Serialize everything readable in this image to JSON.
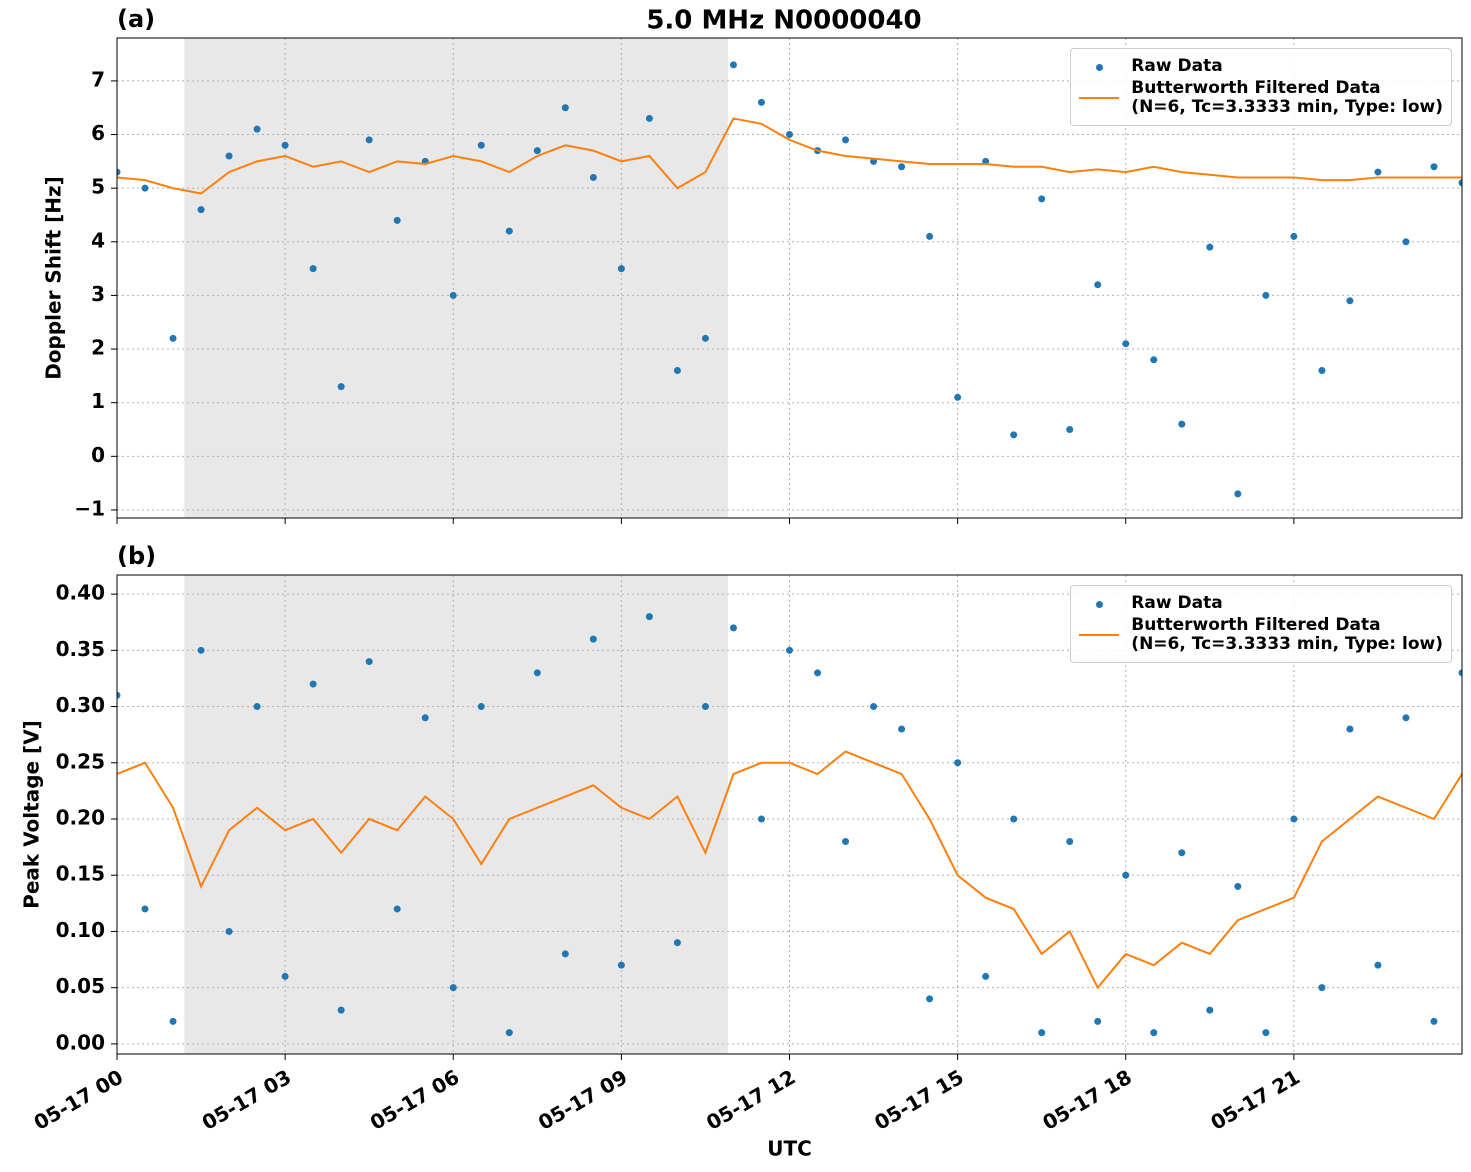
{
  "title": "5.0 MHz N0000040",
  "chart_data": [
    {
      "type": "scatter",
      "panel_label": "(a)",
      "ylabel": "Doppler Shift [Hz]",
      "xlim": [
        0,
        24
      ],
      "ylim": [
        -1.15,
        7.8
      ],
      "grid": true,
      "legend": "upper right",
      "shaded_xrange": [
        1.2,
        10.9
      ],
      "yticks": [
        {
          "value": -1,
          "label": "−1"
        },
        0,
        1,
        2,
        3,
        4,
        5,
        6,
        7
      ],
      "x": [
        0,
        0.5,
        1,
        1.5,
        2,
        2.5,
        3,
        3.5,
        4,
        4.5,
        5,
        5.5,
        6,
        6.5,
        7,
        7.5,
        8,
        8.5,
        9,
        9.5,
        10,
        10.5,
        11,
        11.5,
        12,
        12.5,
        13,
        13.5,
        14,
        14.5,
        15,
        15.5,
        16,
        16.5,
        17,
        17.5,
        18,
        18.5,
        19,
        19.5,
        20,
        20.5,
        21,
        21.5,
        22,
        22.5,
        23,
        23.5,
        24
      ],
      "series": [
        {
          "name": "Raw Data",
          "mode": "markers",
          "color": "#1f77b4",
          "values": [
            5.3,
            5.0,
            2.2,
            4.6,
            5.6,
            6.1,
            5.8,
            3.5,
            1.3,
            5.9,
            4.4,
            5.5,
            3.0,
            5.8,
            4.2,
            5.7,
            6.5,
            5.2,
            3.5,
            6.3,
            1.6,
            2.2,
            7.3,
            6.6,
            6.0,
            5.7,
            5.9,
            5.5,
            5.4,
            4.1,
            1.1,
            5.5,
            0.4,
            4.8,
            0.5,
            3.2,
            2.1,
            1.8,
            0.6,
            3.9,
            -0.7,
            3.0,
            4.1,
            1.6,
            2.9,
            5.3,
            4.0,
            5.4,
            5.1
          ]
        },
        {
          "name": "Butterworth Filtered Data\n(N=6, Tc=3.3333 min, Type: low)",
          "mode": "line",
          "color": "#ff7f0e",
          "values": [
            5.2,
            5.15,
            5.0,
            4.9,
            5.3,
            5.5,
            5.6,
            5.4,
            5.5,
            5.3,
            5.5,
            5.45,
            5.6,
            5.5,
            5.3,
            5.6,
            5.8,
            5.7,
            5.5,
            5.6,
            5.0,
            5.3,
            6.3,
            6.2,
            5.9,
            5.7,
            5.6,
            5.55,
            5.5,
            5.45,
            5.45,
            5.45,
            5.4,
            5.4,
            5.3,
            5.35,
            5.3,
            5.4,
            5.3,
            5.25,
            5.2,
            5.2,
            5.2,
            5.15,
            5.15,
            5.2,
            5.2,
            5.2,
            5.2
          ]
        }
      ]
    },
    {
      "type": "scatter",
      "panel_label": "(b)",
      "ylabel": "Peak Voltage [V]",
      "xlabel": "UTC",
      "xlim": [
        0,
        24
      ],
      "ylim": [
        -0.009,
        0.417
      ],
      "grid": true,
      "legend": "upper right",
      "shaded_xrange": [
        1.2,
        10.9
      ],
      "xticks": [
        {
          "value": 0,
          "label": "05-17 00"
        },
        {
          "value": 3,
          "label": "05-17 03"
        },
        {
          "value": 6,
          "label": "05-17 06"
        },
        {
          "value": 9,
          "label": "05-17 09"
        },
        {
          "value": 12,
          "label": "05-17 12"
        },
        {
          "value": 15,
          "label": "05-17 15"
        },
        {
          "value": 18,
          "label": "05-17 18"
        },
        {
          "value": 21,
          "label": "05-17 21"
        }
      ],
      "yticks": [
        {
          "value": 0,
          "label": "0.00"
        },
        {
          "value": 0.05,
          "label": "0.05"
        },
        {
          "value": 0.1,
          "label": "0.10"
        },
        {
          "value": 0.15,
          "label": "0.15"
        },
        {
          "value": 0.2,
          "label": "0.20"
        },
        {
          "value": 0.25,
          "label": "0.25"
        },
        {
          "value": 0.3,
          "label": "0.30"
        },
        {
          "value": 0.35,
          "label": "0.35"
        },
        {
          "value": 0.4,
          "label": "0.40"
        }
      ],
      "x": [
        0,
        0.5,
        1,
        1.5,
        2,
        2.5,
        3,
        3.5,
        4,
        4.5,
        5,
        5.5,
        6,
        6.5,
        7,
        7.5,
        8,
        8.5,
        9,
        9.5,
        10,
        10.5,
        11,
        11.5,
        12,
        12.5,
        13,
        13.5,
        14,
        14.5,
        15,
        15.5,
        16,
        16.5,
        17,
        17.5,
        18,
        18.5,
        19,
        19.5,
        20,
        20.5,
        21,
        21.5,
        22,
        22.5,
        23,
        23.5,
        24
      ],
      "series": [
        {
          "name": "Raw Data",
          "mode": "markers",
          "color": "#1f77b4",
          "values": [
            0.31,
            0.12,
            0.02,
            0.35,
            0.1,
            0.3,
            0.06,
            0.32,
            0.03,
            0.34,
            0.12,
            0.29,
            0.05,
            0.3,
            0.01,
            0.33,
            0.08,
            0.36,
            0.07,
            0.38,
            0.09,
            0.3,
            0.37,
            0.2,
            0.35,
            0.33,
            0.18,
            0.3,
            0.28,
            0.04,
            0.25,
            0.06,
            0.2,
            0.01,
            0.18,
            0.02,
            0.15,
            0.01,
            0.17,
            0.03,
            0.14,
            0.01,
            0.2,
            0.05,
            0.28,
            0.07,
            0.29,
            0.02,
            0.33
          ]
        },
        {
          "name": "Butterworth Filtered Data\n(N=6, Tc=3.3333 min, Type: low)",
          "mode": "line",
          "color": "#ff7f0e",
          "values": [
            0.24,
            0.25,
            0.21,
            0.14,
            0.19,
            0.21,
            0.19,
            0.2,
            0.17,
            0.2,
            0.19,
            0.22,
            0.2,
            0.16,
            0.2,
            0.21,
            0.22,
            0.23,
            0.21,
            0.2,
            0.22,
            0.17,
            0.24,
            0.25,
            0.25,
            0.24,
            0.26,
            0.25,
            0.24,
            0.2,
            0.15,
            0.13,
            0.12,
            0.08,
            0.1,
            0.05,
            0.08,
            0.07,
            0.09,
            0.08,
            0.11,
            0.12,
            0.13,
            0.18,
            0.2,
            0.22,
            0.21,
            0.2,
            0.24
          ]
        }
      ]
    }
  ]
}
